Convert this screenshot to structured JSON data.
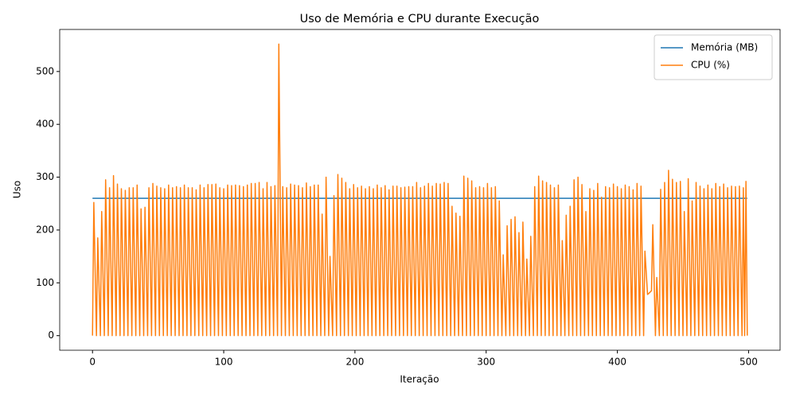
{
  "chart_data": {
    "type": "line",
    "title": "Uso de Memória e CPU durante Execução",
    "x_label": "Iteração",
    "y_label": "Uso",
    "xlim": [
      -25,
      524
    ],
    "ylim": [
      -27.6,
      579.6
    ],
    "xticks": [
      0,
      100,
      200,
      300,
      400,
      500
    ],
    "yticks": [
      0,
      100,
      200,
      300,
      400,
      500
    ],
    "legend": "upper right",
    "series": [
      {
        "name": "Memória (MB)",
        "color": "#1f77b4",
        "x": [
          0,
          499
        ],
        "values": [
          260,
          260
        ]
      },
      {
        "name": "CPU (%)",
        "color": "#ff7f0e",
        "x": [
          0,
          1,
          3,
          4,
          6,
          7,
          9,
          10,
          12,
          13,
          15,
          16,
          18,
          19,
          21,
          22,
          24,
          25,
          27,
          28,
          30,
          31,
          33,
          34,
          36,
          37,
          39,
          40,
          42,
          43,
          45,
          46,
          48,
          49,
          51,
          52,
          54,
          55,
          57,
          58,
          60,
          61,
          63,
          64,
          66,
          67,
          69,
          70,
          72,
          73,
          75,
          76,
          78,
          79,
          81,
          82,
          84,
          85,
          87,
          88,
          90,
          91,
          93,
          94,
          96,
          97,
          99,
          100,
          102,
          103,
          105,
          106,
          108,
          109,
          111,
          112,
          114,
          115,
          117,
          118,
          120,
          121,
          123,
          124,
          126,
          127,
          129,
          130,
          132,
          133,
          135,
          136,
          138,
          139,
          141,
          142,
          144,
          145,
          147,
          148,
          150,
          151,
          153,
          154,
          156,
          157,
          159,
          160,
          162,
          163,
          165,
          166,
          168,
          169,
          171,
          172,
          174,
          175,
          177,
          178,
          180,
          181,
          183,
          184,
          186,
          187,
          189,
          190,
          192,
          193,
          195,
          196,
          198,
          199,
          201,
          202,
          204,
          205,
          207,
          208,
          210,
          211,
          213,
          214,
          216,
          217,
          219,
          220,
          222,
          223,
          225,
          226,
          228,
          229,
          231,
          232,
          234,
          235,
          237,
          238,
          240,
          241,
          243,
          244,
          246,
          247,
          249,
          250,
          252,
          253,
          255,
          256,
          258,
          259,
          261,
          262,
          264,
          265,
          267,
          268,
          270,
          271,
          273,
          274,
          276,
          277,
          279,
          280,
          282,
          283,
          285,
          286,
          288,
          289,
          291,
          292,
          294,
          295,
          297,
          298,
          300,
          301,
          303,
          304,
          306,
          307,
          309,
          310,
          312,
          313,
          315,
          316,
          318,
          319,
          321,
          322,
          324,
          325,
          327,
          328,
          330,
          331,
          333,
          334,
          336,
          337,
          339,
          340,
          342,
          343,
          345,
          346,
          348,
          349,
          351,
          352,
          354,
          355,
          357,
          358,
          360,
          361,
          363,
          364,
          366,
          367,
          369,
          370,
          372,
          373,
          375,
          376,
          378,
          379,
          381,
          382,
          384,
          385,
          387,
          388,
          390,
          391,
          393,
          394,
          396,
          397,
          399,
          400,
          402,
          403,
          405,
          406,
          408,
          409,
          411,
          412,
          414,
          415,
          417,
          418,
          420,
          421,
          423,
          424,
          426,
          427,
          429,
          430,
          432,
          433,
          435,
          436,
          438,
          439,
          441,
          442,
          444,
          445,
          447,
          448,
          450,
          451,
          453,
          454,
          456,
          457,
          459,
          460,
          462,
          463,
          465,
          466,
          468,
          469,
          471,
          472,
          474,
          475,
          477,
          478,
          480,
          481,
          483,
          484,
          486,
          487,
          489,
          490,
          492,
          493,
          495,
          496,
          497,
          498,
          499
        ],
        "values": [
          0,
          252,
          0,
          185,
          0,
          235,
          0,
          295,
          0,
          280,
          0,
          303,
          0,
          287,
          0,
          278,
          0,
          275,
          0,
          280,
          0,
          280,
          0,
          285,
          0,
          240,
          0,
          243,
          0,
          280,
          0,
          288,
          0,
          283,
          0,
          280,
          0,
          278,
          0,
          285,
          0,
          280,
          0,
          282,
          0,
          280,
          0,
          285,
          0,
          280,
          0,
          280,
          0,
          276,
          0,
          285,
          0,
          280,
          0,
          286,
          0,
          286,
          0,
          287,
          0,
          280,
          0,
          278,
          0,
          285,
          0,
          284,
          0,
          285,
          0,
          284,
          0,
          282,
          0,
          285,
          0,
          288,
          0,
          288,
          0,
          290,
          0,
          278,
          0,
          290,
          0,
          282,
          0,
          284,
          0,
          552,
          0,
          282,
          0,
          280,
          0,
          287,
          0,
          285,
          0,
          284,
          0,
          280,
          0,
          289,
          0,
          282,
          0,
          285,
          0,
          285,
          0,
          230,
          0,
          300,
          0,
          150,
          0,
          265,
          0,
          305,
          0,
          298,
          0,
          290,
          0,
          278,
          0,
          286,
          0,
          280,
          0,
          283,
          0,
          278,
          0,
          282,
          0,
          278,
          0,
          285,
          0,
          280,
          0,
          284,
          0,
          276,
          0,
          283,
          0,
          283,
          0,
          280,
          0,
          281,
          0,
          282,
          0,
          282,
          0,
          290,
          0,
          280,
          0,
          283,
          0,
          288,
          0,
          283,
          0,
          288,
          0,
          287,
          0,
          290,
          0,
          288,
          0,
          245,
          0,
          232,
          0,
          226,
          0,
          302,
          0,
          298,
          0,
          293,
          0,
          280,
          0,
          282,
          0,
          280,
          0,
          288,
          0,
          280,
          0,
          282,
          0,
          255,
          0,
          153,
          0,
          208,
          0,
          220,
          0,
          225,
          0,
          195,
          0,
          215,
          0,
          145,
          0,
          188,
          0,
          282,
          0,
          302,
          0,
          293,
          0,
          290,
          0,
          285,
          0,
          280,
          0,
          285,
          0,
          180,
          0,
          228,
          0,
          245,
          0,
          295,
          0,
          300,
          0,
          286,
          0,
          235,
          0,
          278,
          0,
          275,
          0,
          288,
          0,
          262,
          0,
          282,
          0,
          280,
          0,
          287,
          0,
          282,
          0,
          278,
          0,
          285,
          0,
          282,
          0,
          276,
          0,
          288,
          0,
          283,
          0,
          160,
          78,
          80,
          85,
          210,
          0,
          110,
          0,
          277,
          0,
          290,
          0,
          313,
          0,
          296,
          0,
          290,
          0,
          292,
          0,
          235,
          0,
          297,
          0,
          255,
          0,
          290,
          0,
          283,
          0,
          278,
          0,
          285,
          0,
          278,
          0,
          288,
          0,
          282,
          0,
          287,
          0,
          280,
          0,
          283,
          0,
          282,
          0,
          283,
          0,
          280,
          0,
          292,
          0
        ]
      }
    ]
  }
}
